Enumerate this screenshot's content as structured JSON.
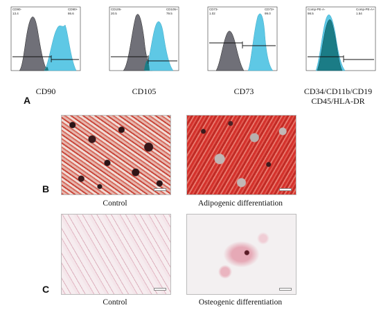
{
  "figure": {
    "panel_a": {
      "letter": "A",
      "histograms": [
        {
          "marker_label": "CD90",
          "gate_left_name": "CD90-",
          "gate_left_value": "13.4",
          "gate_right_name": "CD90+",
          "gate_right_value": "86.6"
        },
        {
          "marker_label": "CD105",
          "gate_left_name": "CD105-",
          "gate_left_value": "20.5",
          "gate_right_name": "CD105+",
          "gate_right_value": "79.5"
        },
        {
          "marker_label": "CD73",
          "gate_left_name": "CD73-",
          "gate_left_value": "1.02",
          "gate_right_name": "CD73+",
          "gate_right_value": "99.0"
        },
        {
          "marker_label_line1": "CD34/CD11b/CD19",
          "marker_label_line2": "CD45/HLA-DR",
          "gate_left_name": "Comp-PE-A-",
          "gate_left_value": "98.5",
          "gate_right_name": "Comp-PE-A+",
          "gate_right_value": "1.54"
        }
      ]
    },
    "panel_b": {
      "letter": "B",
      "left_caption": "Control",
      "right_caption": "Adipogenic differentiation"
    },
    "panel_c": {
      "letter": "C",
      "left_caption": "Control",
      "right_caption": "Osteogenic differentiation"
    },
    "colors": {
      "isotype_fill": "#6f6f78",
      "stained_fill": "#5ec8e5",
      "overlay_fill": "#1b7c86",
      "oil_red": "#d4312b",
      "alizarin_pink": "#e2b7c4"
    }
  }
}
